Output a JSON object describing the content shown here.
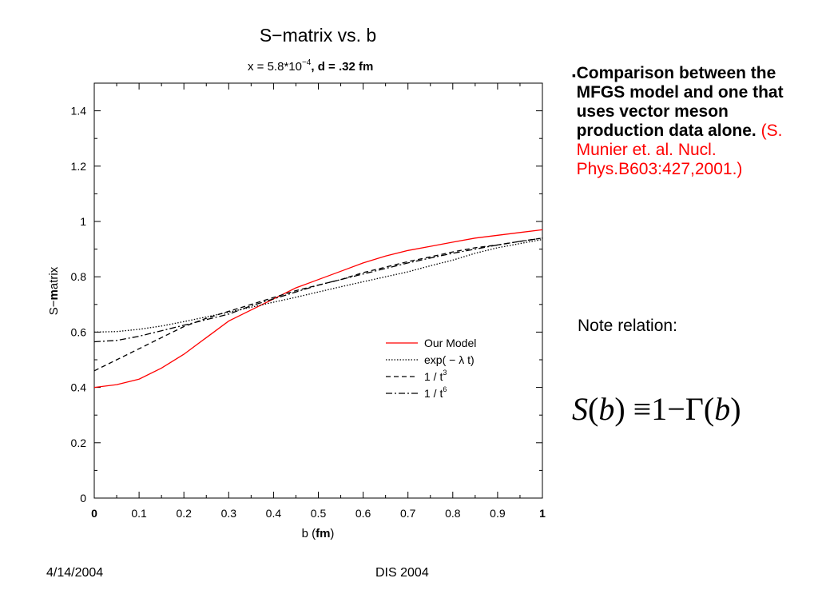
{
  "chart_data": {
    "type": "line",
    "title": "S−matrix vs. b",
    "subtitle": "x = 5.8*10",
    "subtitle_exp": "−4",
    "subtitle_rest": ", d = .32 fm",
    "xlabel_pre": "b (",
    "xlabel_bold": "fm",
    "xlabel_post": ")",
    "ylabel_pre": "S−",
    "ylabel_bold": "m",
    "ylabel_post": "atrix",
    "xlim": [
      0,
      1
    ],
    "ylim": [
      0,
      1.5
    ],
    "x_ticks": [
      "0",
      "0.1",
      "0.2",
      "0.3",
      "0.4",
      "0.5",
      "0.6",
      "0.7",
      "0.8",
      "0.9",
      "1"
    ],
    "y_ticks": [
      "0",
      "0.2",
      "0.4",
      "0.6",
      "0.8",
      "1",
      "1.2",
      "1.4"
    ],
    "grid": false,
    "legend_position": "lower-right",
    "series": [
      {
        "name": "Our Model",
        "color": "#ff0000",
        "dash": "solid",
        "x": [
          0,
          0.05,
          0.1,
          0.15,
          0.2,
          0.25,
          0.3,
          0.35,
          0.4,
          0.45,
          0.5,
          0.55,
          0.6,
          0.65,
          0.7,
          0.75,
          0.8,
          0.85,
          0.9,
          0.95,
          1.0
        ],
        "y": [
          0.4,
          0.41,
          0.43,
          0.47,
          0.52,
          0.58,
          0.64,
          0.68,
          0.72,
          0.76,
          0.79,
          0.82,
          0.85,
          0.875,
          0.895,
          0.91,
          0.925,
          0.94,
          0.95,
          0.96,
          0.97
        ]
      },
      {
        "name": "exp( − λ t)",
        "color": "#000000",
        "dash": "dotted",
        "x": [
          0,
          0.05,
          0.1,
          0.15,
          0.2,
          0.25,
          0.3,
          0.35,
          0.4,
          0.45,
          0.5,
          0.55,
          0.6,
          0.65,
          0.7,
          0.75,
          0.8,
          0.85,
          0.9,
          0.95,
          1.0
        ],
        "y": [
          0.6,
          0.602,
          0.61,
          0.622,
          0.638,
          0.655,
          0.672,
          0.69,
          0.708,
          0.726,
          0.745,
          0.764,
          0.782,
          0.8,
          0.818,
          0.84,
          0.86,
          0.885,
          0.905,
          0.92,
          0.935
        ]
      },
      {
        "name": "1 / t",
        "exp": "3",
        "color": "#000000",
        "dash": "dashed",
        "x": [
          0,
          0.05,
          0.1,
          0.15,
          0.2,
          0.25,
          0.3,
          0.35,
          0.4,
          0.45,
          0.5,
          0.55,
          0.6,
          0.65,
          0.7,
          0.75,
          0.8,
          0.85,
          0.9,
          0.95,
          1.0
        ],
        "y": [
          0.46,
          0.5,
          0.54,
          0.58,
          0.62,
          0.65,
          0.675,
          0.7,
          0.725,
          0.75,
          0.77,
          0.79,
          0.815,
          0.835,
          0.855,
          0.872,
          0.89,
          0.905,
          0.915,
          0.928,
          0.94
        ]
      },
      {
        "name": "1 / t",
        "exp": "6",
        "color": "#000000",
        "dash": "dashdot",
        "x": [
          0,
          0.05,
          0.1,
          0.15,
          0.2,
          0.25,
          0.3,
          0.35,
          0.4,
          0.45,
          0.5,
          0.55,
          0.6,
          0.65,
          0.7,
          0.75,
          0.8,
          0.85,
          0.9,
          0.95,
          1.0
        ],
        "y": [
          0.565,
          0.57,
          0.585,
          0.605,
          0.625,
          0.645,
          0.665,
          0.695,
          0.72,
          0.745,
          0.77,
          0.79,
          0.81,
          0.83,
          0.85,
          0.868,
          0.885,
          0.9,
          0.915,
          0.928,
          0.94
        ]
      }
    ]
  },
  "side_text": {
    "bullet": "▪",
    "bold_text": "Comparison between the MFGS model and one that uses vector meson production data alone.",
    "ref_text": "(S. Munier et. al. Nucl. Phys.B603:427,2001.)",
    "note": "Note relation:"
  },
  "formula": {
    "s": "S",
    "b1": "b",
    "equiv": "≡",
    "one": "1",
    "minus": "−",
    "gamma": "Γ",
    "b2": "b"
  },
  "footer": {
    "date": "4/14/2004",
    "conference": "DIS 2004"
  }
}
